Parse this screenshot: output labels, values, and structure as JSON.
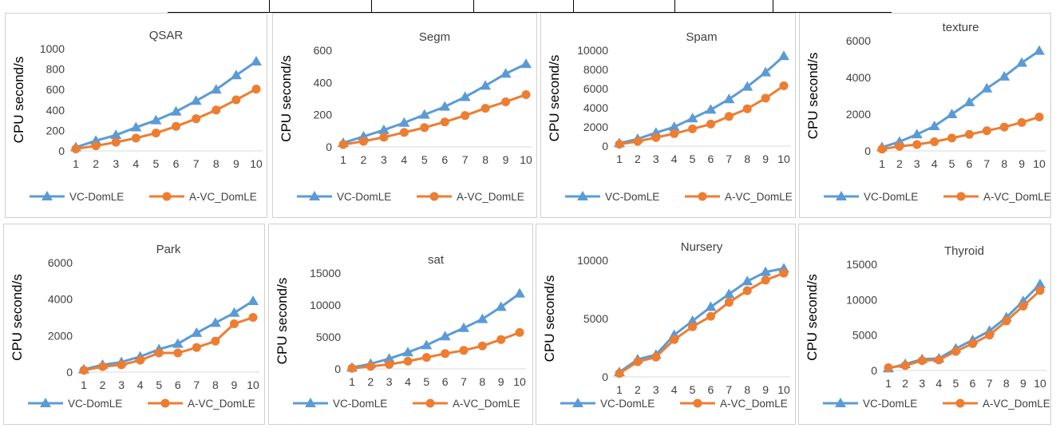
{
  "legend": {
    "a": "VC-DomLE",
    "b": "A-VC_DomLE"
  },
  "colors": {
    "a": "#5b9bd5",
    "b": "#ed7d31"
  },
  "chart_data": [
    {
      "type": "line",
      "title": "QSAR",
      "ylabel": "CPU second/s",
      "xlabel": "",
      "categories": [
        "1",
        "2",
        "3",
        "4",
        "5",
        "6",
        "7",
        "8",
        "9",
        "10"
      ],
      "ylim": [
        0,
        1000
      ],
      "yticks": [
        "0",
        "200",
        "400",
        "600",
        "800",
        "1000"
      ],
      "legend_position": "bottom",
      "series": [
        {
          "name": "VC-DomLE",
          "values": [
            35,
            100,
            155,
            230,
            300,
            385,
            490,
            600,
            740,
            875
          ]
        },
        {
          "name": "A-VC_DomLE",
          "values": [
            20,
            50,
            85,
            125,
            175,
            240,
            315,
            400,
            500,
            605
          ]
        }
      ]
    },
    {
      "type": "line",
      "title": "Segm",
      "ylabel": "CPU second/s",
      "xlabel": "",
      "categories": [
        "1",
        "2",
        "3",
        "4",
        "5",
        "6",
        "7",
        "8",
        "9",
        "10"
      ],
      "ylim": [
        0,
        600
      ],
      "yticks": [
        "0",
        "200",
        "400",
        "600"
      ],
      "legend_position": "bottom",
      "series": [
        {
          "name": "VC-DomLE",
          "values": [
            25,
            65,
            105,
            150,
            200,
            250,
            310,
            380,
            455,
            515
          ]
        },
        {
          "name": "A-VC_DomLE",
          "values": [
            15,
            35,
            60,
            90,
            120,
            155,
            195,
            240,
            280,
            325
          ]
        }
      ]
    },
    {
      "type": "line",
      "title": "Spam",
      "ylabel": "CPU second/s",
      "xlabel": "",
      "categories": [
        "1",
        "2",
        "3",
        "4",
        "5",
        "6",
        "7",
        "8",
        "9",
        "10"
      ],
      "ylim": [
        0,
        10000
      ],
      "yticks": [
        "0",
        "2000",
        "4000",
        "6000",
        "8000",
        "10000"
      ],
      "legend_position": "bottom",
      "series": [
        {
          "name": "VC-DomLE",
          "values": [
            300,
            750,
            1400,
            2000,
            2900,
            3800,
            4900,
            6200,
            7700,
            9400
          ]
        },
        {
          "name": "A-VC_DomLE",
          "values": [
            200,
            500,
            900,
            1300,
            1800,
            2300,
            3100,
            3900,
            5000,
            6300
          ]
        }
      ]
    },
    {
      "type": "line",
      "title": "texture",
      "ylabel": "CPU second/s",
      "xlabel": "",
      "categories": [
        "1",
        "2",
        "3",
        "4",
        "5",
        "6",
        "7",
        "8",
        "9",
        "10"
      ],
      "ylim": [
        0,
        6000
      ],
      "yticks": [
        "0",
        "2000",
        "4000",
        "6000"
      ],
      "legend_position": "bottom",
      "series": [
        {
          "name": "VC-DomLE",
          "values": [
            200,
            500,
            900,
            1350,
            2000,
            2650,
            3400,
            4050,
            4800,
            5450
          ]
        },
        {
          "name": "A-VC_DomLE",
          "values": [
            100,
            250,
            350,
            500,
            700,
            900,
            1100,
            1300,
            1550,
            1850
          ]
        }
      ]
    },
    {
      "type": "line",
      "title": "Park",
      "ylabel": "CPU second/s",
      "xlabel": "",
      "categories": [
        "1",
        "2",
        "3",
        "4",
        "5",
        "6",
        "7",
        "8",
        "9",
        "10"
      ],
      "ylim": [
        0,
        6000
      ],
      "yticks": [
        "0",
        "2000",
        "4000",
        "6000"
      ],
      "legend_position": "bottom",
      "series": [
        {
          "name": "VC-DomLE",
          "values": [
            150,
            400,
            550,
            850,
            1250,
            1550,
            2150,
            2700,
            3250,
            3900
          ]
        },
        {
          "name": "A-VC_DomLE",
          "values": [
            100,
            300,
            400,
            650,
            1050,
            1050,
            1350,
            1700,
            2650,
            3000
          ]
        }
      ]
    },
    {
      "type": "line",
      "title": "sat",
      "ylabel": "CPU second/s",
      "xlabel": "",
      "categories": [
        "1",
        "2",
        "3",
        "4",
        "5",
        "6",
        "7",
        "8",
        "9",
        "10"
      ],
      "ylim": [
        0,
        15000
      ],
      "yticks": [
        "0",
        "5000",
        "10000",
        "15000"
      ],
      "legend_position": "bottom",
      "series": [
        {
          "name": "VC-DomLE",
          "values": [
            200,
            800,
            1600,
            2600,
            3700,
            5100,
            6400,
            7800,
            9700,
            11800
          ]
        },
        {
          "name": "A-VC_DomLE",
          "values": [
            100,
            400,
            700,
            1200,
            1800,
            2400,
            2900,
            3600,
            4600,
            5700
          ]
        }
      ]
    },
    {
      "type": "line",
      "title": "Nursery",
      "ylabel": "CPU second/s",
      "xlabel": "",
      "categories": [
        "1",
        "2",
        "3",
        "4",
        "5",
        "6",
        "7",
        "8",
        "9",
        "10"
      ],
      "ylim": [
        0,
        10000
      ],
      "yticks": [
        "0",
        "5000",
        "10000"
      ],
      "legend_position": "bottom",
      "series": [
        {
          "name": "VC-DomLE",
          "values": [
            400,
            1500,
            1900,
            3600,
            4800,
            6000,
            7100,
            8200,
            9000,
            9300
          ]
        },
        {
          "name": "A-VC_DomLE",
          "values": [
            300,
            1300,
            1700,
            3200,
            4300,
            5200,
            6400,
            7400,
            8300,
            8900
          ]
        }
      ]
    },
    {
      "type": "line",
      "title": "Thyroid",
      "ylabel": "CPU second/s",
      "xlabel": "",
      "categories": [
        "1",
        "2",
        "3",
        "4",
        "5",
        "6",
        "7",
        "8",
        "9",
        "10"
      ],
      "ylim": [
        0,
        15000
      ],
      "yticks": [
        "0",
        "5000",
        "10000",
        "15000"
      ],
      "legend_position": "bottom",
      "series": [
        {
          "name": "VC-DomLE",
          "values": [
            300,
            900,
            1600,
            1700,
            3100,
            4300,
            5600,
            7500,
            9800,
            12200
          ]
        },
        {
          "name": "A-VC_DomLE",
          "values": [
            400,
            700,
            1400,
            1500,
            2700,
            3800,
            5000,
            7000,
            9100,
            11300
          ]
        }
      ]
    }
  ]
}
